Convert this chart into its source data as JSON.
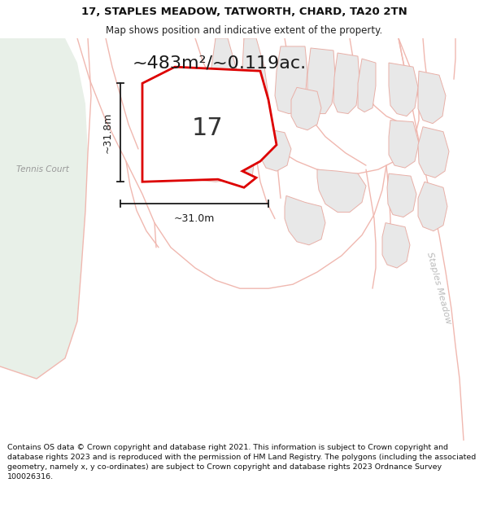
{
  "title_line1": "17, STAPLES MEADOW, TATWORTH, CHARD, TA20 2TN",
  "title_line2": "Map shows position and indicative extent of the property.",
  "area_label": "~483m²/~0.119ac.",
  "plot_number": "17",
  "dim_vertical": "~31.8m",
  "dim_horizontal": "~31.0m",
  "road_label": "Staples Meadow",
  "tennis_label": "Tennis Court",
  "footer_text": "Contains OS data © Crown copyright and database right 2021. This information is subject to Crown copyright and database rights 2023 and is reproduced with the permission of HM Land Registry. The polygons (including the associated geometry, namely x, y co-ordinates) are subject to Crown copyright and database rights 2023 Ordnance Survey 100026316.",
  "map_bg": "#f8f8f8",
  "plot_fill": "#ffffff",
  "plot_edge": "#dd0000",
  "other_plot_fill": "#e8e8e8",
  "other_plot_edge": "#e8b0a8",
  "road_line_color": "#f0b8b0",
  "green_area": "#e8f0e8",
  "dim_color": "#1a1a1a",
  "title_fontsize": 9.5,
  "subtitle_fontsize": 8.5,
  "footer_fontsize": 6.8,
  "area_label_fontsize": 16,
  "plot_number_fontsize": 22,
  "dim_fontsize": 9
}
